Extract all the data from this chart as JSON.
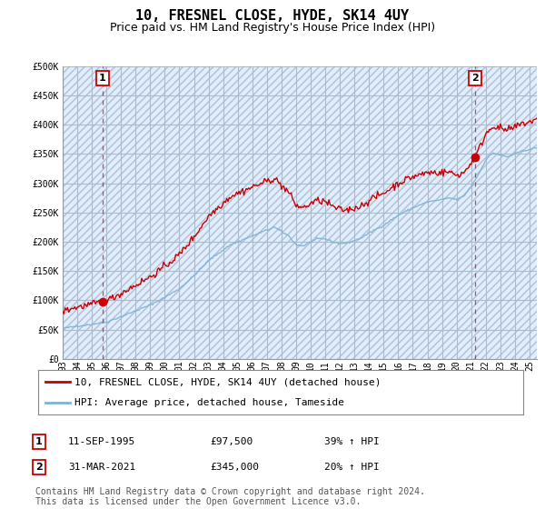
{
  "title": "10, FRESNEL CLOSE, HYDE, SK14 4UY",
  "subtitle": "Price paid vs. HM Land Registry's House Price Index (HPI)",
  "ylim": [
    0,
    500000
  ],
  "yticks": [
    0,
    50000,
    100000,
    150000,
    200000,
    250000,
    300000,
    350000,
    400000,
    450000,
    500000
  ],
  "ytick_labels": [
    "£0",
    "£50K",
    "£100K",
    "£150K",
    "£200K",
    "£250K",
    "£300K",
    "£350K",
    "£400K",
    "£450K",
    "£500K"
  ],
  "xlim_start": 1993.0,
  "xlim_end": 2025.5,
  "sale1_x": 1995.71,
  "sale1_y": 97500,
  "sale2_x": 2021.25,
  "sale2_y": 345000,
  "sale1_label": "11-SEP-1995",
  "sale1_price": "£97,500",
  "sale1_hpi": "39% ↑ HPI",
  "sale2_label": "31-MAR-2021",
  "sale2_price": "£345,000",
  "sale2_hpi": "20% ↑ HPI",
  "red_color": "#cc0000",
  "blue_color": "#7fb3d3",
  "bg_color": "#ffffff",
  "plot_bg_color": "#ddeeff",
  "grid_color": "#cccccc",
  "hatch_color": "#bbbbcc",
  "legend_line1": "10, FRESNEL CLOSE, HYDE, SK14 4UY (detached house)",
  "legend_line2": "HPI: Average price, detached house, Tameside",
  "footer": "Contains HM Land Registry data © Crown copyright and database right 2024.\nThis data is licensed under the Open Government Licence v3.0.",
  "title_fontsize": 11,
  "subtitle_fontsize": 9,
  "tick_fontsize": 7,
  "legend_fontsize": 8,
  "annotation_fontsize": 8,
  "footer_fontsize": 7
}
